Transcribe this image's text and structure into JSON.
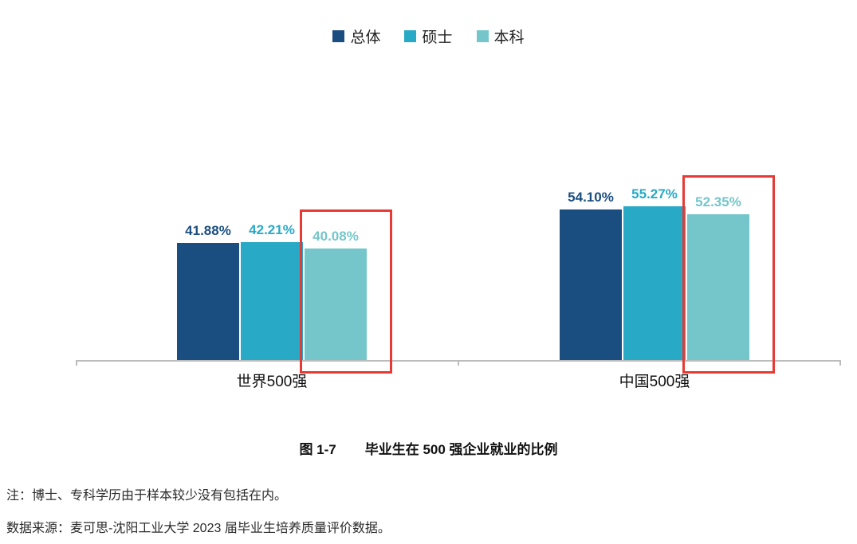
{
  "chart_data": {
    "type": "bar",
    "categories": [
      "世界500强",
      "中国500强"
    ],
    "series": [
      {
        "name": "总体",
        "color": "#1a4e80",
        "values": [
          41.88,
          54.1
        ]
      },
      {
        "name": "硕士",
        "color": "#28a9c5",
        "values": [
          42.21,
          55.27
        ]
      },
      {
        "name": "本科",
        "color": "#74c6ca",
        "values": [
          40.08,
          52.35
        ]
      }
    ],
    "value_labels": [
      [
        "41.88%",
        "42.21%",
        "40.08%"
      ],
      [
        "54.10%",
        "55.27%",
        "52.35%"
      ]
    ],
    "highlight_series": "本科",
    "highlight_color": "#e63a35",
    "ylim": [
      0,
      60
    ],
    "legend_position": "top",
    "grid": false,
    "xlabel": "",
    "ylabel": ""
  },
  "caption": {
    "figure_label": "图 1-7",
    "title": "毕业生在 500 强企业就业的比例"
  },
  "notes": {
    "note": "注：博士、专科学历由于样本较少没有包括在内。",
    "source": "数据来源：麦可思-沈阳工业大学 2023 届毕业生培养质量评价数据。"
  }
}
